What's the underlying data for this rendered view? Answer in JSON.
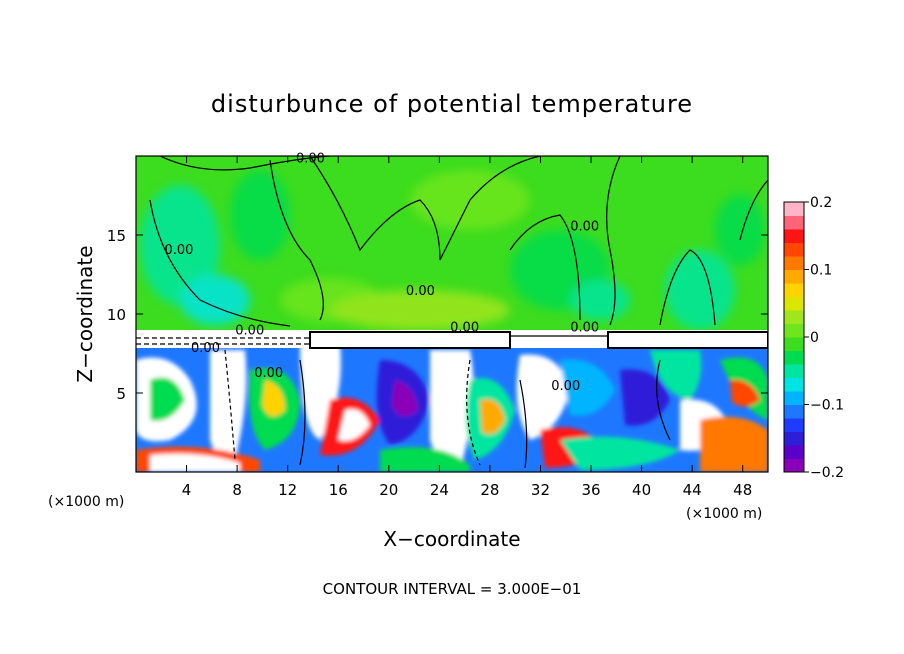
{
  "chart_data": {
    "type": "heatmap",
    "title": "disturbunce of potential temperature",
    "xlabel": "X−coordinate",
    "ylabel": "Z−coordinate",
    "x_unit_left": "(×1000 m)",
    "x_unit_right": "(×1000 m)",
    "footer": "CONTOUR INTERVAL = 3.000E−01",
    "x_ticks": [
      {
        "value": 4,
        "label": "4"
      },
      {
        "value": 8,
        "label": "8"
      },
      {
        "value": 12,
        "label": "12"
      },
      {
        "value": 16,
        "label": "16"
      },
      {
        "value": 20,
        "label": "20"
      },
      {
        "value": 24,
        "label": "24"
      },
      {
        "value": 28,
        "label": "28"
      },
      {
        "value": 32,
        "label": "32"
      },
      {
        "value": 36,
        "label": "36"
      },
      {
        "value": 40,
        "label": "40"
      },
      {
        "value": 44,
        "label": "44"
      },
      {
        "value": 48,
        "label": "48"
      }
    ],
    "y_ticks": [
      {
        "value": 5,
        "label": "5"
      },
      {
        "value": 10,
        "label": "10"
      },
      {
        "value": 15,
        "label": "15"
      }
    ],
    "xlim": [
      0,
      50
    ],
    "ylim": [
      0,
      20
    ],
    "colorbar": {
      "ticks": [
        {
          "value": 0.2,
          "label": "0.2"
        },
        {
          "value": 0.1,
          "label": "0.1"
        },
        {
          "value": 0,
          "label": "0"
        },
        {
          "value": -0.1,
          "label": "−0.1"
        },
        {
          "value": -0.2,
          "label": "−0.2"
        }
      ],
      "range": [
        -0.2,
        0.2
      ],
      "colors": [
        "#8a00b8",
        "#5a00c8",
        "#2d1ed8",
        "#1e3cff",
        "#1e78ff",
        "#00b4ff",
        "#00e4e4",
        "#00e6a0",
        "#00dc50",
        "#3cdc1e",
        "#6ee61e",
        "#a0e61e",
        "#dce600",
        "#ffd200",
        "#ffaa00",
        "#ff7800",
        "#ff4600",
        "#ff1414",
        "#ff6478",
        "#ffb4c8"
      ]
    },
    "contour_labels": [
      {
        "x": 13.8,
        "z": 19.6,
        "text": "0.00"
      },
      {
        "x": 3.4,
        "z": 13.8,
        "text": "0.00"
      },
      {
        "x": 5.5,
        "z": 7.6,
        "text": "0.00"
      },
      {
        "x": 9.0,
        "z": 8.7,
        "text": "0.00"
      },
      {
        "x": 10.5,
        "z": 6.0,
        "text": "0.00"
      },
      {
        "x": 22.5,
        "z": 11.2,
        "text": "0.00"
      },
      {
        "x": 26.0,
        "z": 8.9,
        "text": "0.00"
      },
      {
        "x": 35.5,
        "z": 15.3,
        "text": "0.00"
      },
      {
        "x": 35.5,
        "z": 8.9,
        "text": "0.00"
      },
      {
        "x": 34.0,
        "z": 5.2,
        "text": "0.00"
      }
    ]
  }
}
